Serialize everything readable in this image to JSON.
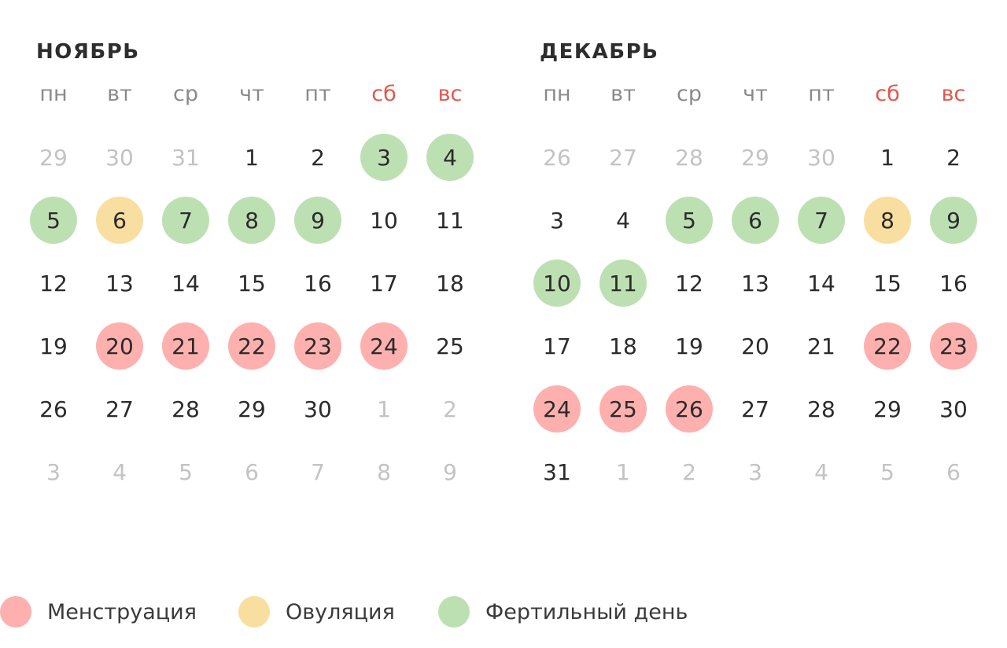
{
  "colors": {
    "menstruation": "#fdb0ae",
    "ovulation": "#f8dfa0",
    "fertile": "#bde0b3",
    "weekend_text": "#e2574c",
    "other_month_text": "#c3c3c3"
  },
  "weekdays": [
    {
      "label": "пн",
      "weekend": false
    },
    {
      "label": "вт",
      "weekend": false
    },
    {
      "label": "ср",
      "weekend": false
    },
    {
      "label": "чт",
      "weekend": false
    },
    {
      "label": "пт",
      "weekend": false
    },
    {
      "label": "сб",
      "weekend": true
    },
    {
      "label": "вс",
      "weekend": true
    }
  ],
  "months": [
    {
      "id": "november",
      "title": "НОЯБРЬ",
      "days": [
        {
          "day": "29",
          "other": true
        },
        {
          "day": "30",
          "other": true
        },
        {
          "day": "31",
          "other": true
        },
        {
          "day": "1"
        },
        {
          "day": "2"
        },
        {
          "day": "3",
          "status": "fertile"
        },
        {
          "day": "4",
          "status": "fertile"
        },
        {
          "day": "5",
          "status": "fertile"
        },
        {
          "day": "6",
          "status": "ovulation"
        },
        {
          "day": "7",
          "status": "fertile"
        },
        {
          "day": "8",
          "status": "fertile"
        },
        {
          "day": "9",
          "status": "fertile"
        },
        {
          "day": "10"
        },
        {
          "day": "11"
        },
        {
          "day": "12"
        },
        {
          "day": "13"
        },
        {
          "day": "14"
        },
        {
          "day": "15"
        },
        {
          "day": "16"
        },
        {
          "day": "17"
        },
        {
          "day": "18"
        },
        {
          "day": "19"
        },
        {
          "day": "20",
          "status": "menstruation"
        },
        {
          "day": "21",
          "status": "menstruation"
        },
        {
          "day": "22",
          "status": "menstruation"
        },
        {
          "day": "23",
          "status": "menstruation"
        },
        {
          "day": "24",
          "status": "menstruation"
        },
        {
          "day": "25"
        },
        {
          "day": "26"
        },
        {
          "day": "27"
        },
        {
          "day": "28"
        },
        {
          "day": "29"
        },
        {
          "day": "30"
        },
        {
          "day": "1",
          "other": true
        },
        {
          "day": "2",
          "other": true
        },
        {
          "day": "3",
          "other": true
        },
        {
          "day": "4",
          "other": true
        },
        {
          "day": "5",
          "other": true
        },
        {
          "day": "6",
          "other": true
        },
        {
          "day": "7",
          "other": true
        },
        {
          "day": "8",
          "other": true
        },
        {
          "day": "9",
          "other": true
        }
      ]
    },
    {
      "id": "december",
      "title": "ДЕКАБРЬ",
      "days": [
        {
          "day": "26",
          "other": true
        },
        {
          "day": "27",
          "other": true
        },
        {
          "day": "28",
          "other": true
        },
        {
          "day": "29",
          "other": true
        },
        {
          "day": "30",
          "other": true
        },
        {
          "day": "1"
        },
        {
          "day": "2"
        },
        {
          "day": "3"
        },
        {
          "day": "4"
        },
        {
          "day": "5",
          "status": "fertile"
        },
        {
          "day": "6",
          "status": "fertile"
        },
        {
          "day": "7",
          "status": "fertile"
        },
        {
          "day": "8",
          "status": "ovulation"
        },
        {
          "day": "9",
          "status": "fertile"
        },
        {
          "day": "10",
          "status": "fertile"
        },
        {
          "day": "11",
          "status": "fertile"
        },
        {
          "day": "12"
        },
        {
          "day": "13"
        },
        {
          "day": "14"
        },
        {
          "day": "15"
        },
        {
          "day": "16"
        },
        {
          "day": "17"
        },
        {
          "day": "18"
        },
        {
          "day": "19"
        },
        {
          "day": "20"
        },
        {
          "day": "21"
        },
        {
          "day": "22",
          "status": "menstruation"
        },
        {
          "day": "23",
          "status": "menstruation"
        },
        {
          "day": "24",
          "status": "menstruation"
        },
        {
          "day": "25",
          "status": "menstruation"
        },
        {
          "day": "26",
          "status": "menstruation"
        },
        {
          "day": "27"
        },
        {
          "day": "28"
        },
        {
          "day": "29"
        },
        {
          "day": "30"
        },
        {
          "day": "31"
        },
        {
          "day": "1",
          "other": true
        },
        {
          "day": "2",
          "other": true
        },
        {
          "day": "3",
          "other": true
        },
        {
          "day": "4",
          "other": true
        },
        {
          "day": "5",
          "other": true
        },
        {
          "day": "6",
          "other": true
        }
      ]
    }
  ],
  "legend": [
    {
      "key": "menstruation",
      "label": "Менструация",
      "icon": "red-circle"
    },
    {
      "key": "ovulation",
      "label": "Овуляция",
      "icon": "yellow-circle"
    },
    {
      "key": "fertile",
      "label": "Фертильный день",
      "icon": "green-circle"
    }
  ]
}
